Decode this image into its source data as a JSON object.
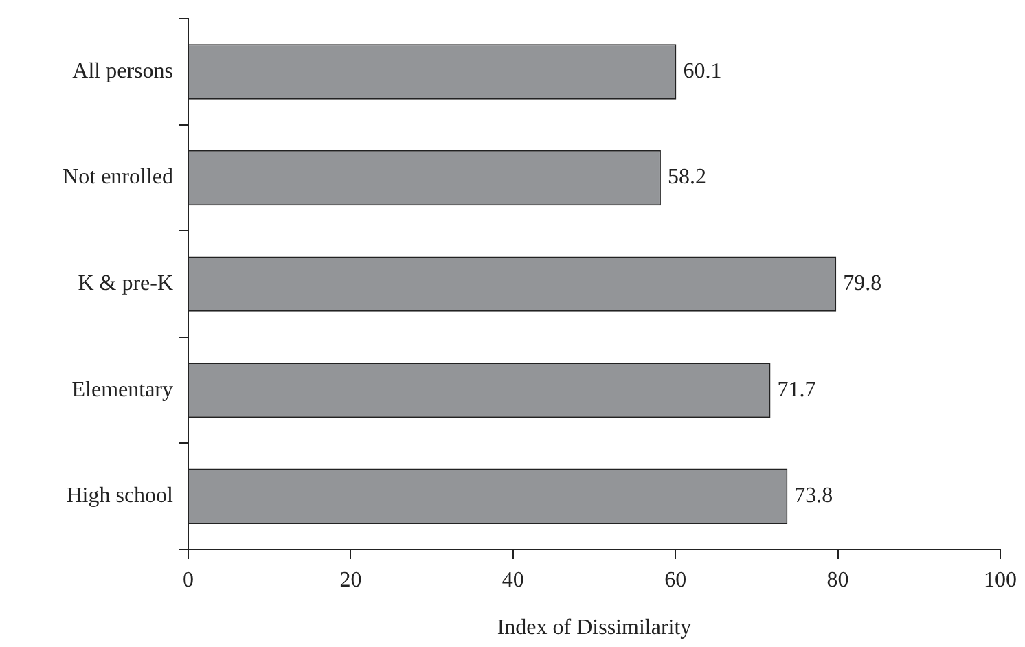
{
  "chart_data": {
    "type": "bar",
    "orientation": "horizontal",
    "xlabel": "Index of Dissimilarity",
    "categories": [
      "All persons",
      "Not enrolled",
      "K & pre-K",
      "Elementary",
      "High school"
    ],
    "values": [
      60.1,
      58.2,
      79.8,
      71.7,
      73.8
    ],
    "color": "#939598",
    "xlim": [
      0,
      100
    ],
    "xticks": [
      0,
      20,
      40,
      60,
      80,
      100
    ],
    "grid": false,
    "legend": false,
    "data_labels": true
  }
}
